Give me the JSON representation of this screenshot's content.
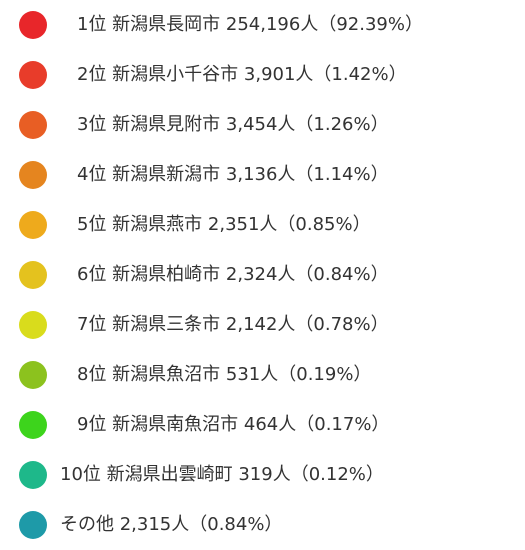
{
  "items": [
    {
      "label": "1位 新潟県長岡市 254,196人（92.39%）",
      "color": "#e8262a"
    },
    {
      "label": "2位 新潟県小千谷市 3,901人（1.42%）",
      "color": "#e83c2a"
    },
    {
      "label": "3位 新潟県見附市 3,454人（1.26%）",
      "color": "#e85e24"
    },
    {
      "label": "4位 新潟県新潟市 3,136人（1.14%）",
      "color": "#e5851f"
    },
    {
      "label": "5位 新潟県燕市 2,351人（0.85%）",
      "color": "#eeaa1c"
    },
    {
      "label": "6位 新潟県柏崎市 2,324人（0.84%）",
      "color": "#e4c21e"
    },
    {
      "label": "7位 新潟県三条市 2,142人（0.78%）",
      "color": "#d9dc1c"
    },
    {
      "label": "8位 新潟県魚沼市 531人（0.19%）",
      "color": "#8cc21e"
    },
    {
      "label": "9位 新潟県南魚沼市 464人（0.17%）",
      "color": "#3dd41c"
    },
    {
      "label": "10位 新潟県出雲崎町 319人（0.12%）",
      "color": "#1eb88a"
    },
    {
      "label": "その他 2,315人（0.84%）",
      "color": "#1e9aa8"
    }
  ]
}
